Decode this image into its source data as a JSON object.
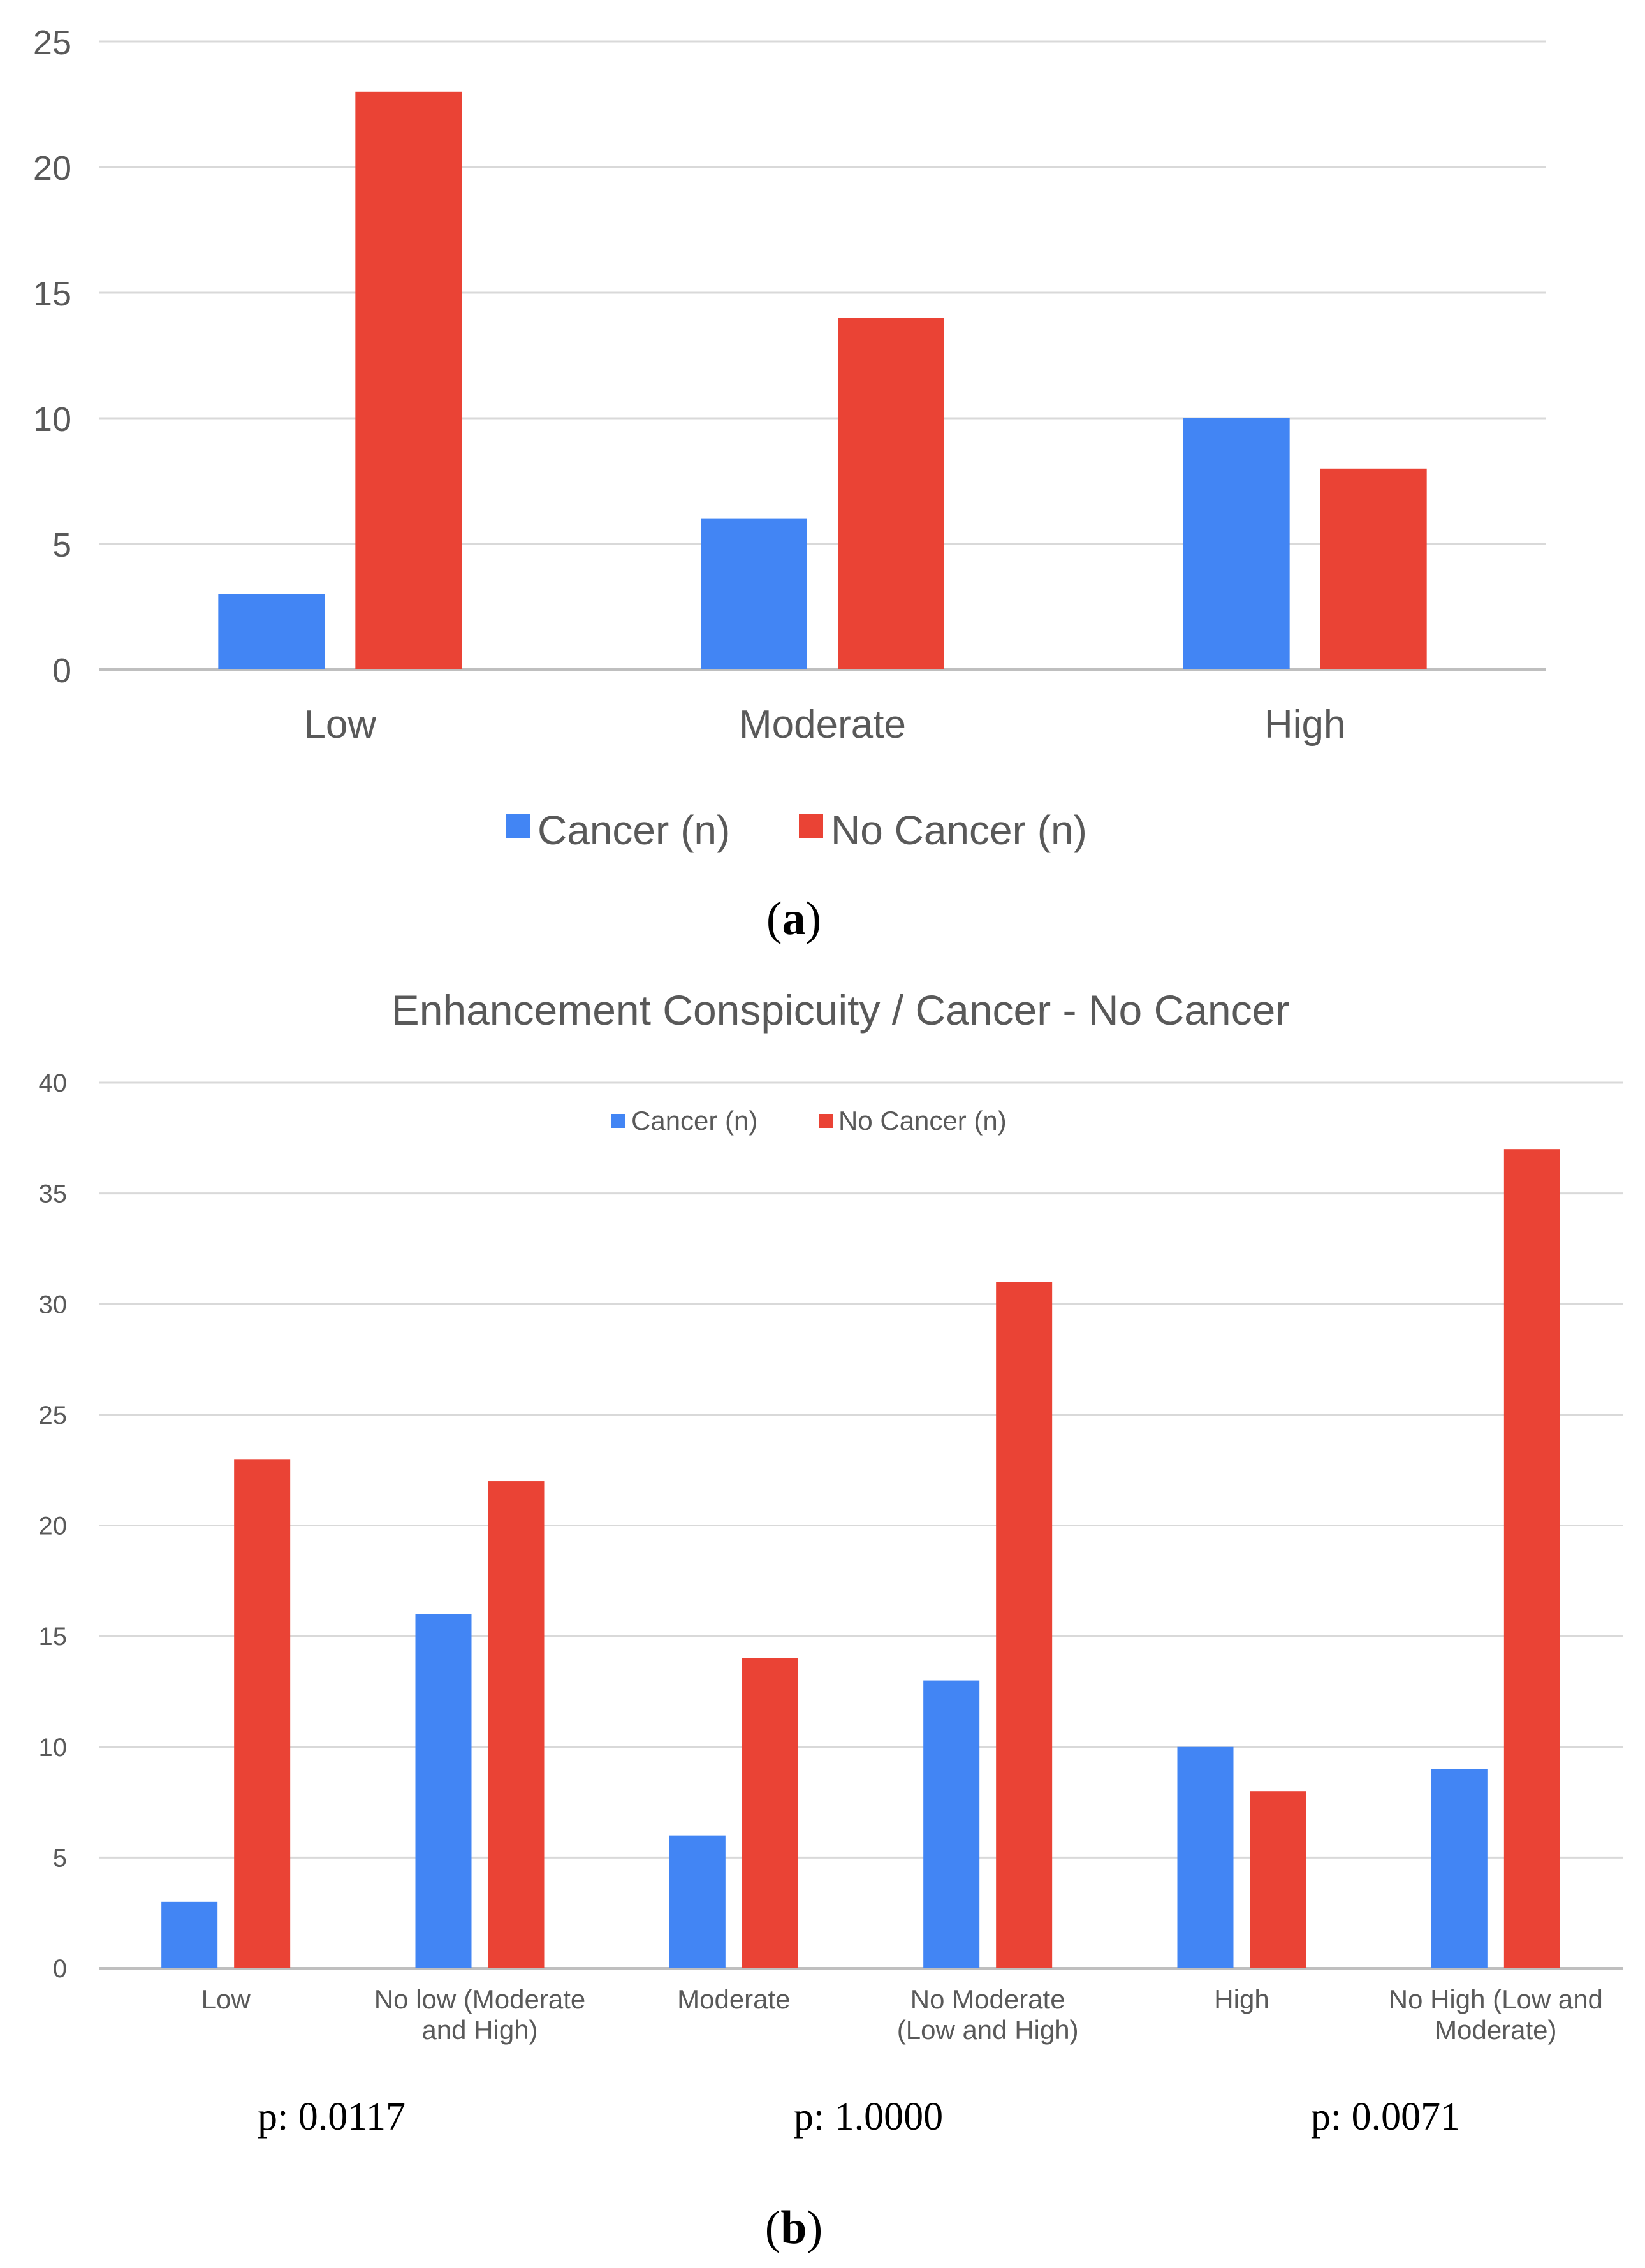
{
  "colors": {
    "cancer": "#4285F4",
    "no_cancer": "#EA4335"
  },
  "chart_data": [
    {
      "type": "bar",
      "panel_label": "a",
      "title": "",
      "xlabel": "",
      "ylabel": "",
      "categories": [
        "Low",
        "Moderate",
        "High"
      ],
      "series": [
        {
          "name": "Cancer (n)",
          "values": [
            3,
            6,
            10
          ]
        },
        {
          "name": "No Cancer (n)",
          "values": [
            23,
            14,
            8
          ]
        }
      ],
      "ylim": [
        0,
        25
      ],
      "yticks": [
        "0",
        "5",
        "10",
        "15",
        "20",
        "25"
      ],
      "grid": true,
      "legend": "bottom"
    },
    {
      "type": "bar",
      "panel_label": "b",
      "title": "Enhancement Conspicuity / Cancer - No Cancer",
      "xlabel": "",
      "ylabel": "",
      "categories": [
        [
          "Low"
        ],
        [
          "No low (Moderate",
          "and High)"
        ],
        [
          "Moderate"
        ],
        [
          "No Moderate",
          "(Low and High)"
        ],
        [
          "High"
        ],
        [
          "No High (Low and",
          "Moderate)"
        ]
      ],
      "series": [
        {
          "name": "Cancer (n)",
          "values": [
            3,
            16,
            6,
            13,
            10,
            9
          ]
        },
        {
          "name": "No Cancer (n)",
          "values": [
            23,
            22,
            14,
            31,
            8,
            37
          ]
        }
      ],
      "ylim": [
        0,
        40
      ],
      "yticks": [
        "0",
        "5",
        "10",
        "15",
        "20",
        "25",
        "30",
        "35",
        "40"
      ],
      "grid": true,
      "legend": "top",
      "annotations": [
        "p: 0.0117",
        "p: 1.0000",
        "p: 0.0071"
      ]
    }
  ]
}
